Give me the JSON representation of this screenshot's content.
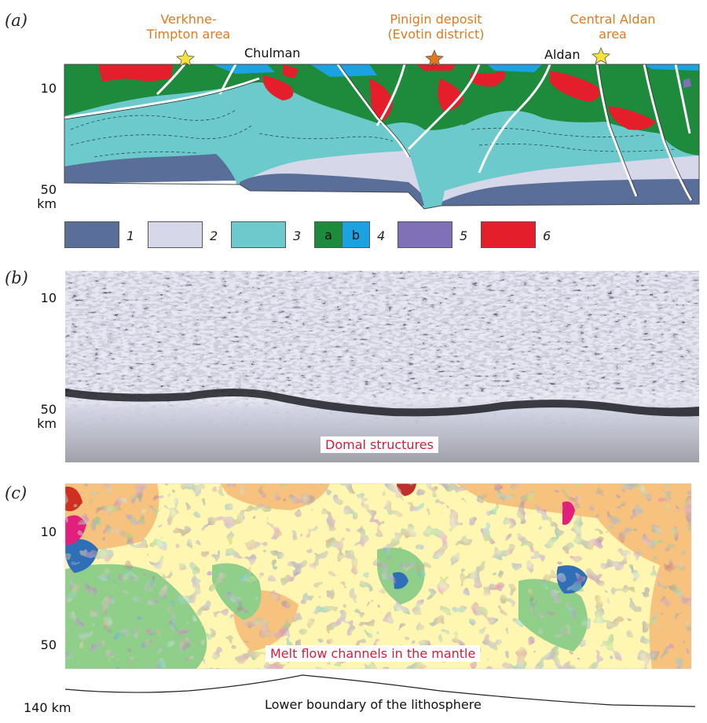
{
  "panels": {
    "a": "(a)",
    "b": "(b)",
    "c": "(c)"
  },
  "panel_a": {
    "sites": [
      {
        "label": "Verkhne-\nTimpton area",
        "line1": "Verkhne-",
        "line2": "Timpton area"
      },
      {
        "label": "Pinigin deposit (Evotin district)",
        "line1": "Pinigin deposit",
        "line2": "(Evotin district)"
      },
      {
        "label": "Central Aldan area",
        "line1": "Central Aldan",
        "line2": "area"
      }
    ],
    "towns": [
      "Chulman",
      "Aldan"
    ],
    "y_ticks": [
      "10",
      "50"
    ],
    "y_unit": "km"
  },
  "legend": {
    "items": [
      "1",
      "2",
      "3",
      "4",
      "5",
      "6"
    ],
    "sub_a": "a",
    "sub_b": "b",
    "colors": {
      "1": "#5a6e9a",
      "2": "#d7d7ea",
      "3": "#6cc9cc",
      "4a": "#1e8a3c",
      "4b": "#1aa3e0",
      "5": "#8070b8",
      "6": "#e41e2a"
    }
  },
  "panel_b": {
    "y_ticks": [
      "10",
      "50"
    ],
    "y_unit": "km",
    "callout": "Domal structures"
  },
  "panel_c": {
    "y_ticks": [
      "10",
      "50"
    ],
    "callout": "Melt flow channels in the mantle"
  },
  "lithosphere": {
    "depth_label": "140 km",
    "caption": "Lower boundary of the lithosphere"
  }
}
